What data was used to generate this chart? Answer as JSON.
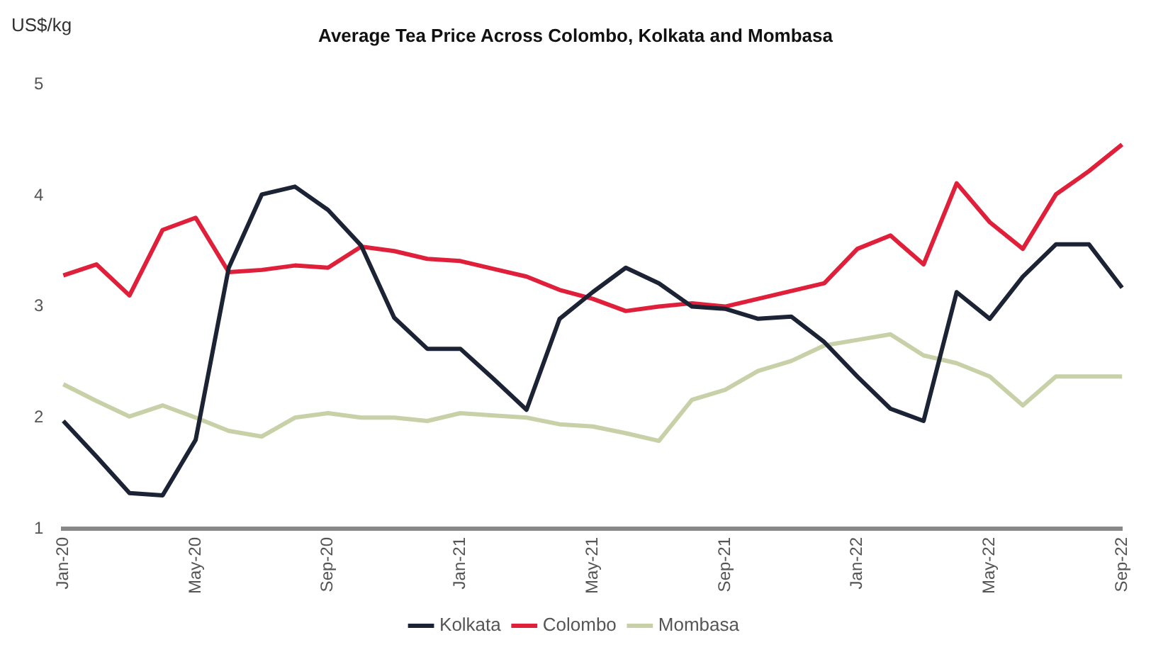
{
  "chart_data": {
    "type": "line",
    "title": "Average Tea Price Across Colombo, Kolkata and Mombasa",
    "ylabel": "US$/kg",
    "categories": [
      "Jan-20",
      null,
      null,
      null,
      "May-20",
      null,
      null,
      null,
      "Sep-20",
      null,
      null,
      null,
      "Jan-21",
      null,
      null,
      null,
      "May-21",
      null,
      null,
      null,
      "Sep-21",
      null,
      null,
      null,
      "Jan-22",
      null,
      null,
      null,
      "May-22",
      null,
      null,
      null,
      "Sep-22"
    ],
    "series": [
      {
        "name": "Kolkata",
        "color": "#1b2335",
        "values": [
          1.97,
          1.65,
          1.32,
          1.3,
          1.8,
          3.35,
          4.01,
          4.08,
          3.87,
          3.55,
          2.9,
          2.62,
          2.62,
          2.35,
          2.07,
          2.89,
          3.13,
          3.35,
          3.21,
          3.0,
          2.98,
          2.89,
          2.91,
          2.68,
          2.37,
          2.08,
          1.97,
          3.13,
          2.89,
          3.27,
          3.56,
          3.56,
          3.17
        ]
      },
      {
        "name": "Colombo",
        "color": "#e0203a",
        "values": [
          3.28,
          3.38,
          3.1,
          3.69,
          3.8,
          3.31,
          3.33,
          3.37,
          3.35,
          3.54,
          3.5,
          3.43,
          3.41,
          3.34,
          3.27,
          3.15,
          3.07,
          2.96,
          3.0,
          3.03,
          3.0,
          3.07,
          3.14,
          3.21,
          3.52,
          3.64,
          3.38,
          4.11,
          3.76,
          3.52,
          4.01,
          4.22,
          4.46
        ]
      },
      {
        "name": "Mombasa",
        "color": "#c8d0a8",
        "values": [
          2.3,
          2.15,
          2.01,
          2.11,
          2.0,
          1.88,
          1.83,
          2.0,
          2.04,
          2.0,
          2.0,
          1.97,
          2.04,
          2.02,
          2.0,
          1.94,
          1.92,
          1.86,
          1.79,
          2.16,
          2.25,
          2.42,
          2.51,
          2.65,
          2.7,
          2.75,
          2.56,
          2.49,
          2.37,
          2.11,
          2.37,
          2.37,
          2.37
        ]
      }
    ],
    "ylim": [
      1,
      5
    ],
    "yticks": [
      1,
      2,
      3,
      4,
      5
    ],
    "grid": false,
    "legend": "bottom",
    "marker": "none",
    "line_style": "solid"
  }
}
